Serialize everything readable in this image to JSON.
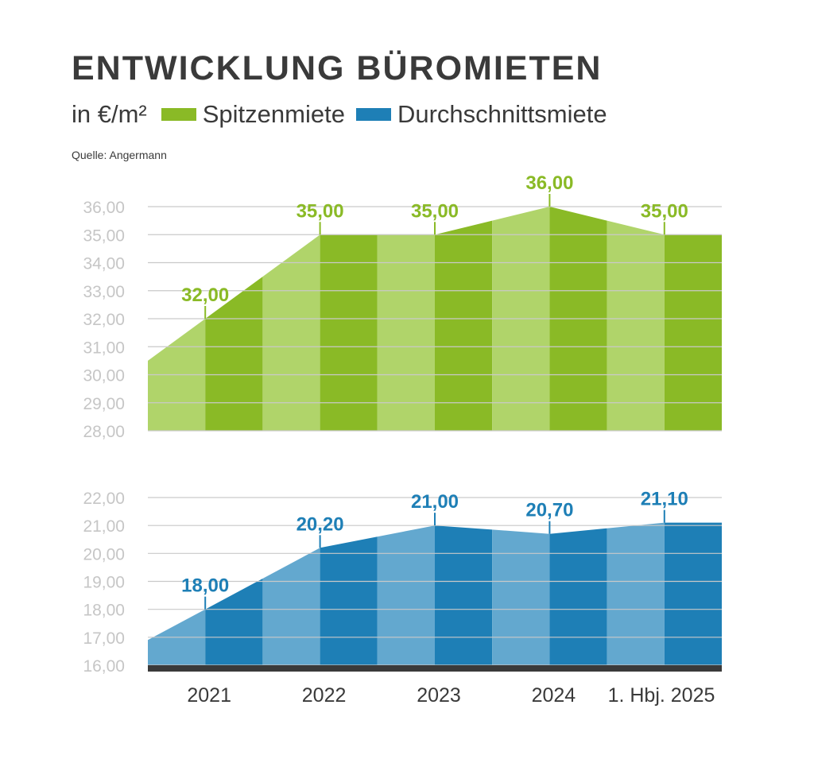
{
  "title": "ENTWICKLUNG BÜROMIETEN",
  "legend": {
    "unit": "in €/m²",
    "items": [
      {
        "label": "Spitzenmiete",
        "color": "#8aba26"
      },
      {
        "label": "Durchschnittsmiete",
        "color": "#1e7fb6"
      }
    ]
  },
  "source": "Quelle: Angermann",
  "chart_data": [
    {
      "type": "area",
      "series_name": "Spitzenmiete",
      "colors": {
        "light": "#b0d46a",
        "dark": "#8aba26"
      },
      "ylim": [
        28,
        36
      ],
      "yticks": [
        "36,00",
        "35,00",
        "34,00",
        "33,00",
        "32,00",
        "31,00",
        "30,00",
        "29,00",
        "28,00"
      ],
      "x": [
        "2021",
        "2022",
        "2023",
        "2024",
        "1. Hbj. 2025"
      ],
      "values": [
        32.0,
        35.0,
        35.0,
        36.0,
        35.0
      ],
      "labels": [
        "32,00",
        "35,00",
        "35,00",
        "36,00",
        "35,00"
      ],
      "grid": true
    },
    {
      "type": "area",
      "series_name": "Durchschnittsmiete",
      "colors": {
        "light": "#63a8cf",
        "dark": "#1e7fb6"
      },
      "ylim": [
        16,
        22
      ],
      "yticks": [
        "22,00",
        "21,00",
        "20,00",
        "19,00",
        "18,00",
        "17,00",
        "16,00"
      ],
      "x": [
        "2021",
        "2022",
        "2023",
        "2024",
        "1. Hbj. 2025"
      ],
      "values": [
        18.0,
        20.2,
        21.0,
        20.7,
        21.1
      ],
      "labels": [
        "18,00",
        "20,20",
        "21,00",
        "20,70",
        "21,10"
      ],
      "grid": true
    }
  ]
}
